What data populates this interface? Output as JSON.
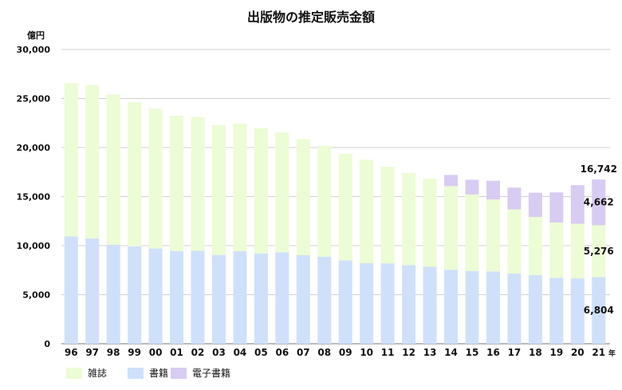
{
  "chart_data": {
    "type": "bar",
    "stacked": true,
    "title": "出版物の推定販売金額",
    "ylabel": "億円",
    "x_suffix": "年",
    "ylim": [
      0,
      30000
    ],
    "yticks": [
      "0",
      "5,000",
      "10,000",
      "15,000",
      "20,000",
      "25,000",
      "30,000"
    ],
    "grid": true,
    "legend": "bottom-left",
    "categories": [
      "96",
      "97",
      "98",
      "99",
      "00",
      "01",
      "02",
      "03",
      "04",
      "05",
      "06",
      "07",
      "08",
      "09",
      "10",
      "11",
      "12",
      "13",
      "14",
      "15",
      "16",
      "17",
      "18",
      "19",
      "20",
      "21"
    ],
    "series": [
      {
        "name": "書籍",
        "color": "#cfe0fb",
        "values": [
          10931,
          10730,
          10100,
          9936,
          9706,
          9456,
          9490,
          9056,
          9429,
          9197,
          9326,
          9026,
          8878,
          8492,
          8213,
          8199,
          8013,
          7851,
          7544,
          7419,
          7370,
          7152,
          6991,
          6723,
          6661,
          6804
        ]
      },
      {
        "name": "雑誌",
        "color": "#ecfcd4",
        "values": [
          15632,
          15644,
          15315,
          14672,
          14261,
          13794,
          13616,
          13222,
          12998,
          12767,
          12200,
          11827,
          11299,
          10864,
          10535,
          9844,
          9385,
          8972,
          8520,
          7801,
          7339,
          6548,
          5930,
          5637,
          5576,
          5276
        ]
      },
      {
        "name": "電子書籍",
        "color": "#d8ccf2",
        "values": [
          0,
          0,
          0,
          0,
          0,
          0,
          0,
          0,
          0,
          0,
          0,
          0,
          0,
          0,
          0,
          0,
          0,
          0,
          1144,
          1502,
          1909,
          2215,
          2479,
          3072,
          3931,
          4662
        ]
      }
    ],
    "data_labels": {
      "category": "21",
      "total": "16,742",
      "電子書籍": "4,662",
      "雑誌": "5,276",
      "書籍": "6,804"
    },
    "legend_items": [
      {
        "label": "雑誌",
        "color": "#ecfcd4"
      },
      {
        "label": "書籍",
        "color": "#cfe0fb"
      },
      {
        "label": "電子書籍",
        "color": "#d8ccf2"
      }
    ]
  }
}
